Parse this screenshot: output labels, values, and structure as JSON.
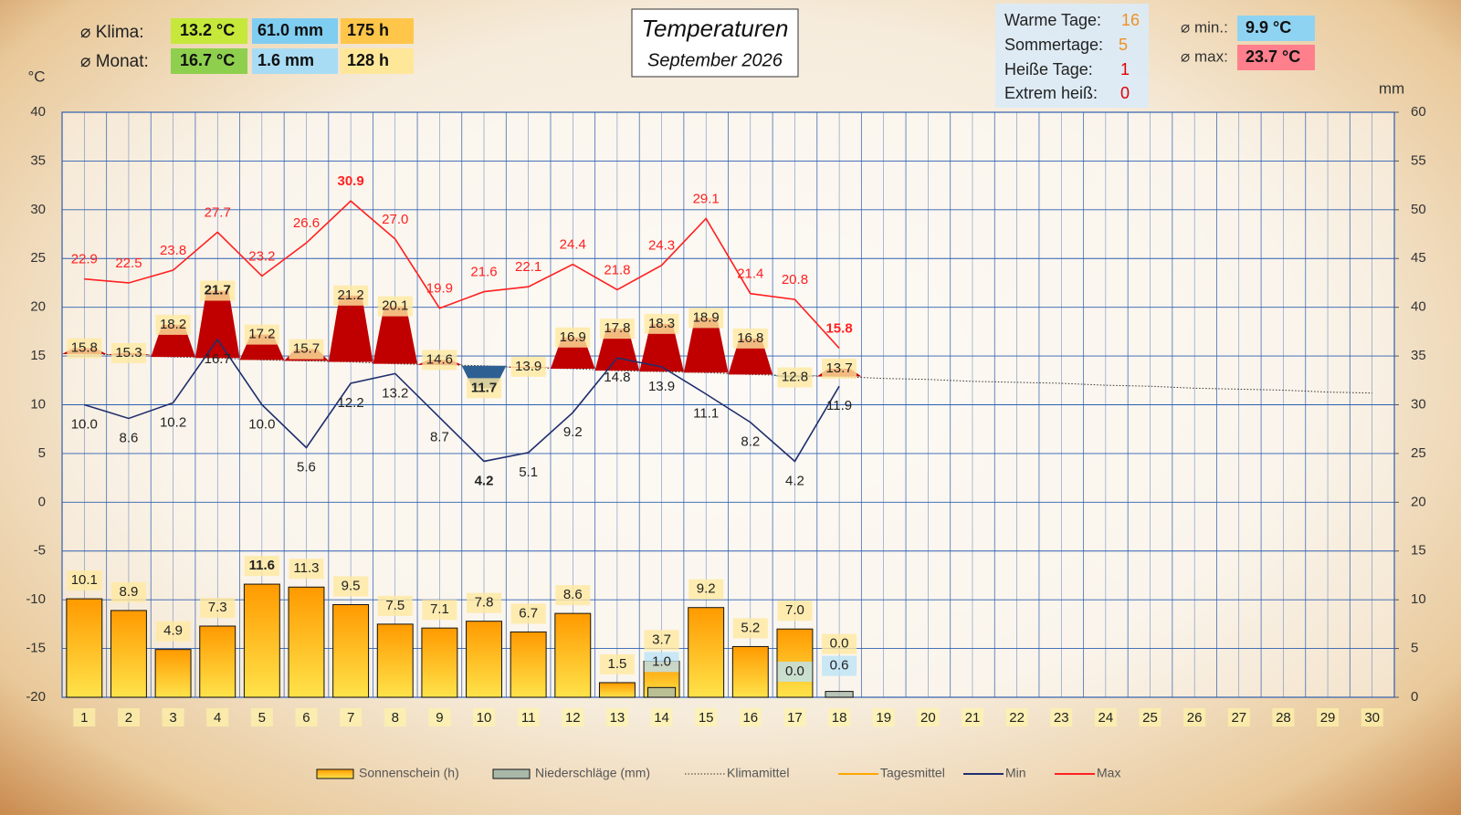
{
  "summary": {
    "klima_label": "⌀ Klima:",
    "klima": [
      "13.2 °C",
      "61.0 mm",
      "175  h"
    ],
    "monat_label": "⌀ Monat:",
    "monat": [
      "16.7 °C",
      "1.6   mm",
      "128  h"
    ]
  },
  "stats": [
    {
      "label": "Warme Tage:",
      "value": 16
    },
    {
      "label": "Sommertage:",
      "value": 5
    },
    {
      "label": "Heiße Tage:",
      "value": 1
    },
    {
      "label": "Extrem heiß:",
      "value": 0
    }
  ],
  "extremes": [
    {
      "label": "⌀ min.:",
      "value": "9.9   °C"
    },
    {
      "label": "⌀ max:",
      "value": "23.7 °C"
    }
  ],
  "chart_data": {
    "type": "combo",
    "title": "Temperaturen",
    "subtitle": "September 2026",
    "y_label": "°C",
    "y2_label": "mm",
    "categories": [
      "1",
      "2",
      "3",
      "4",
      "5",
      "6",
      "7",
      "8",
      "9",
      "10",
      "11",
      "12",
      "13",
      "14",
      "15",
      "16",
      "17",
      "18",
      "19",
      "20",
      "21",
      "22",
      "23",
      "24",
      "25",
      "26",
      "27",
      "28",
      "29",
      "30"
    ],
    "ylim": [
      -20,
      40
    ],
    "yticks": [
      -20,
      -15,
      -10,
      -5,
      0,
      5,
      10,
      15,
      20,
      25,
      30,
      35,
      40
    ],
    "y2lim": [
      0,
      60
    ],
    "y2ticks": [
      0,
      5,
      10,
      15,
      20,
      25,
      30,
      35,
      40,
      45,
      50,
      55,
      60
    ],
    "grid": true,
    "above_color": "#c00000",
    "below_color": "#2e5f93",
    "series": [
      {
        "name": "Sonnenschein (h)",
        "kind": "bar",
        "axis": "y2",
        "color": "#ffa500",
        "values": [
          10.1,
          8.9,
          4.9,
          7.3,
          11.6,
          11.3,
          9.5,
          7.5,
          7.1,
          7.8,
          6.7,
          8.6,
          1.5,
          3.7,
          9.2,
          5.2,
          7.0,
          0.0,
          null,
          null,
          null,
          null,
          null,
          null,
          null,
          null,
          null,
          null,
          null,
          null
        ],
        "value_labels": [
          "10.1",
          "8.9",
          "4.9",
          "7.3",
          "11.6",
          "11.3",
          "9.5",
          "7.5",
          "7.1",
          "7.8",
          "6.7",
          "8.6",
          "1.5",
          "3.7",
          "9.2",
          "5.2",
          "7.0",
          "0.0",
          null,
          null,
          null,
          null,
          null,
          null,
          null,
          null,
          null,
          null,
          null,
          null
        ]
      },
      {
        "name": "Niederschläge (mm)",
        "kind": "bar",
        "axis": "y2",
        "color": "#a9b9a9",
        "values": [
          null,
          null,
          null,
          null,
          null,
          null,
          null,
          null,
          null,
          null,
          null,
          null,
          null,
          1.0,
          null,
          null,
          0.0,
          0.6,
          null,
          null,
          null,
          null,
          null,
          null,
          null,
          null,
          null,
          null,
          null,
          null
        ],
        "value_labels": [
          null,
          null,
          null,
          null,
          null,
          null,
          null,
          null,
          null,
          null,
          null,
          null,
          null,
          "1.0",
          null,
          null,
          "0.0",
          "0.6",
          null,
          null,
          null,
          null,
          null,
          null,
          null,
          null,
          null,
          null,
          null,
          null
        ]
      },
      {
        "name": "Klimamittel",
        "kind": "dotted",
        "color": "#333333",
        "values": [
          15.2,
          15.1,
          14.9,
          14.8,
          14.6,
          14.5,
          14.4,
          14.2,
          14.1,
          14.0,
          13.8,
          13.7,
          13.5,
          13.4,
          13.3,
          13.1,
          13.0,
          12.9,
          12.7,
          12.6,
          12.4,
          12.3,
          12.2,
          12.0,
          11.9,
          11.7,
          11.6,
          11.5,
          11.3,
          11.2
        ]
      },
      {
        "name": "Tagesmittel",
        "kind": "area",
        "color": "#ffa500",
        "values": [
          15.8,
          15.3,
          18.2,
          21.7,
          17.2,
          15.7,
          21.2,
          20.1,
          14.6,
          11.7,
          13.9,
          16.9,
          17.8,
          18.3,
          18.9,
          16.8,
          12.8,
          13.7,
          null,
          null,
          null,
          null,
          null,
          null,
          null,
          null,
          null,
          null,
          null,
          null
        ]
      },
      {
        "name": "Min",
        "kind": "line",
        "color": "#1f2f6e",
        "label_position": "below",
        "values": [
          10.0,
          8.6,
          10.2,
          16.7,
          10.0,
          5.6,
          12.2,
          13.2,
          8.7,
          4.2,
          5.1,
          9.2,
          14.8,
          13.9,
          11.1,
          8.2,
          4.2,
          11.9,
          null,
          null,
          null,
          null,
          null,
          null,
          null,
          null,
          null,
          null,
          null,
          null
        ],
        "value_labels": [
          "10.0",
          "8.6",
          "10.2",
          "16.7",
          "10.0",
          "5.6",
          "12.2",
          "13.2",
          "8.7",
          "4.2",
          "5.1",
          "9.2",
          "14.8",
          "13.9",
          "11.1",
          "8.2",
          "4.2",
          "11.9",
          null,
          null,
          null,
          null,
          null,
          null,
          null,
          null,
          null,
          null,
          null,
          null
        ]
      },
      {
        "name": "Max",
        "kind": "line",
        "color": "#ff2020",
        "label_position": "above",
        "values": [
          22.9,
          22.5,
          23.8,
          27.7,
          23.2,
          26.6,
          30.9,
          27.0,
          19.9,
          21.6,
          22.1,
          24.4,
          21.8,
          24.3,
          29.1,
          21.4,
          20.8,
          15.8,
          null,
          null,
          null,
          null,
          null,
          null,
          null,
          null,
          null,
          null,
          null,
          null
        ],
        "value_labels": [
          "22.9",
          "22.5",
          "23.8",
          "27.7",
          "23.2",
          "26.6",
          "30.9",
          "27.0",
          "19.9",
          "21.6",
          "22.1",
          "24.4",
          "21.8",
          "24.3",
          "29.1",
          "21.4",
          "20.8",
          "15.8",
          null,
          null,
          null,
          null,
          null,
          null,
          null,
          null,
          null,
          null,
          null,
          null
        ]
      }
    ]
  }
}
